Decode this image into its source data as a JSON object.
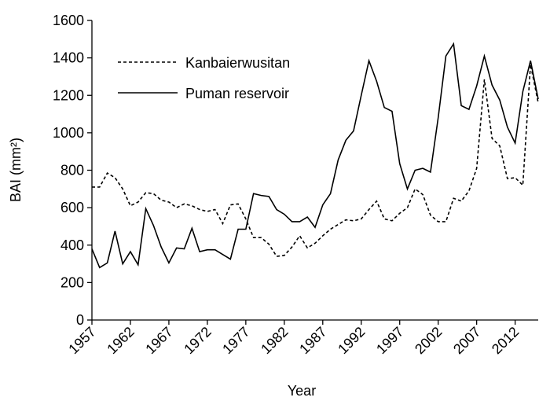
{
  "chart_data": {
    "type": "line",
    "x_label": "Year",
    "y_label": "BAI (mm²)",
    "x": [
      1957,
      1958,
      1959,
      1960,
      1961,
      1962,
      1963,
      1964,
      1965,
      1966,
      1967,
      1968,
      1969,
      1970,
      1971,
      1972,
      1973,
      1974,
      1975,
      1976,
      1977,
      1978,
      1979,
      1980,
      1981,
      1982,
      1983,
      1984,
      1985,
      1986,
      1987,
      1988,
      1989,
      1990,
      1991,
      1992,
      1993,
      1994,
      1995,
      1996,
      1997,
      1998,
      1999,
      2000,
      2001,
      2002,
      2003,
      2004,
      2005,
      2006,
      2007,
      2008,
      2009,
      2010,
      2011,
      2012,
      2013,
      2014,
      2015
    ],
    "series": [
      {
        "name": "Kanbaierwusitan",
        "color": "#000000",
        "style": "dashed",
        "values": [
          710,
          710,
          785,
          760,
          700,
          610,
          630,
          680,
          675,
          640,
          630,
          600,
          620,
          610,
          590,
          580,
          590,
          515,
          615,
          620,
          540,
          440,
          440,
          405,
          340,
          345,
          390,
          450,
          385,
          410,
          450,
          485,
          510,
          535,
          530,
          540,
          590,
          635,
          540,
          530,
          570,
          600,
          700,
          670,
          560,
          525,
          525,
          650,
          635,
          690,
          810,
          1285,
          970,
          930,
          755,
          760,
          720,
          1365,
          1160
        ]
      },
      {
        "name": "Puman reservoir",
        "color": "#000000",
        "style": "solid",
        "values": [
          380,
          280,
          305,
          475,
          300,
          365,
          295,
          595,
          505,
          390,
          305,
          385,
          380,
          490,
          365,
          375,
          375,
          350,
          325,
          485,
          485,
          675,
          665,
          660,
          590,
          565,
          525,
          525,
          550,
          495,
          615,
          675,
          855,
          960,
          1010,
          1200,
          1385,
          1275,
          1135,
          1115,
          835,
          700,
          800,
          810,
          790,
          1080,
          1410,
          1475,
          1145,
          1125,
          1250,
          1410,
          1255,
          1175,
          1030,
          945,
          1220,
          1385,
          1180
        ]
      }
    ],
    "xlim": [
      1957,
      2015
    ],
    "xticks": [
      1957,
      1962,
      1967,
      1972,
      1977,
      1982,
      1987,
      1992,
      1997,
      2002,
      2007,
      2012
    ],
    "ylim": [
      0,
      1600
    ],
    "yticks": [
      0,
      200,
      400,
      600,
      800,
      1000,
      1200,
      1400,
      1600
    ],
    "grid": false,
    "legend": "upper left"
  }
}
